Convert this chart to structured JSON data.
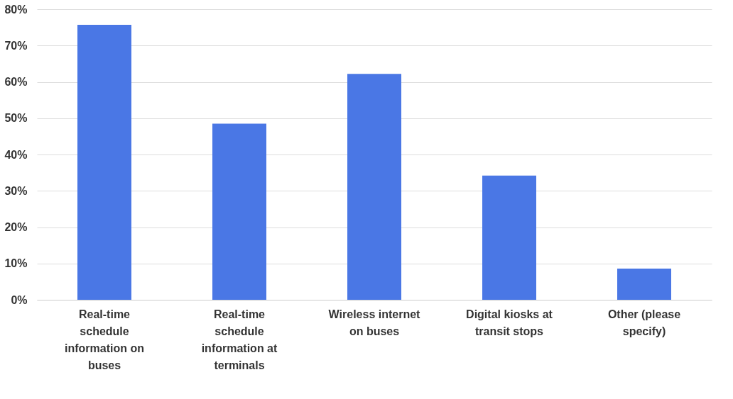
{
  "chart_data": {
    "type": "bar",
    "categories": [
      "Real-time schedule information on buses",
      "Real-time schedule information at terminals",
      "Wireless internet on buses",
      "Digital kiosks at transit stops",
      "Other (please specify)"
    ],
    "values": [
      75.7,
      48.5,
      62.2,
      34.2,
      8.6
    ],
    "color": "#4a77e5",
    "ylim": [
      0,
      80
    ],
    "yticks": [
      {
        "value": 0,
        "label": "0%"
      },
      {
        "value": 10,
        "label": "10%"
      },
      {
        "value": 20,
        "label": "20%"
      },
      {
        "value": 30,
        "label": "30%"
      },
      {
        "value": 40,
        "label": "40%"
      },
      {
        "value": 50,
        "label": "50%"
      },
      {
        "value": 60,
        "label": "60%"
      },
      {
        "value": 70,
        "label": "70%"
      },
      {
        "value": 80,
        "label": "80%"
      }
    ],
    "grid": "y"
  }
}
